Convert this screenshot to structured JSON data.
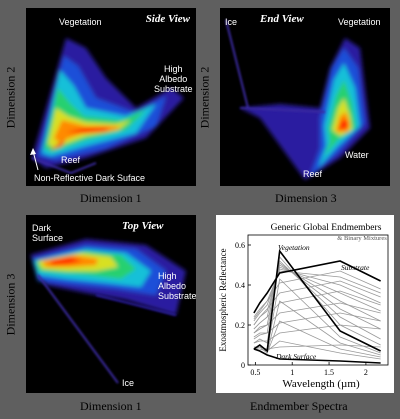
{
  "panels": {
    "side": {
      "view_label": "Side View",
      "ylabel": "Dimension 2",
      "xlabel": "Dimension 1",
      "annotations": {
        "vegetation": "Vegetation",
        "high_albedo": "High\nAlbedo\nSubstrate",
        "reef": "Reef",
        "dark": "Non-Reflective Dark Suface"
      }
    },
    "end": {
      "view_label": "End View",
      "ylabel": "Dimension 2",
      "xlabel": "Dimension 3",
      "annotations": {
        "ice": "Ice",
        "vegetation": "Vegetation",
        "water": "Water",
        "reef": "Reef"
      }
    },
    "top": {
      "view_label": "Top View",
      "ylabel": "Dimension 3",
      "xlabel": "Dimension 1",
      "annotations": {
        "dark": "Dark\nSurface",
        "high_albedo": "High\nAlbedo\nSubstrate",
        "ice": "Ice"
      }
    }
  },
  "spectra_caption": "Endmember Spectra",
  "colors": {
    "background": "#5f5f5f",
    "density_low": "#3a2aa0",
    "density_mid": "#22d06a",
    "density_high": "#ff2a00"
  },
  "chart_data": {
    "type": "line",
    "title": "Generic Global Endmembers",
    "subtitle": "& Binary Mixtures",
    "xlabel": "Wavelength (µm)",
    "ylabel": "Exoatmospheric Reflectance",
    "xlim": [
      0.4,
      2.3
    ],
    "ylim": [
      0,
      0.65
    ],
    "xticks": [
      0.5,
      1,
      1.5,
      2
    ],
    "yticks": [
      0,
      0.2,
      0.4,
      0.6
    ],
    "ytick_labels": [
      "0",
      "0.2",
      "0.4",
      "0.6"
    ],
    "xtick_labels": [
      "0.5",
      "1",
      "1.5",
      "2"
    ],
    "bands": [
      0.48,
      0.56,
      0.66,
      0.83,
      1.65,
      2.2
    ],
    "series": [
      {
        "name": "Vegetation",
        "values": [
          0.08,
          0.1,
          0.07,
          0.57,
          0.17,
          0.07
        ]
      },
      {
        "name": "Substrate",
        "values": [
          0.26,
          0.31,
          0.36,
          0.46,
          0.52,
          0.42
        ]
      },
      {
        "name": "Dark Surface",
        "values": [
          0.08,
          0.07,
          0.05,
          0.03,
          0.02,
          0.01
        ]
      },
      {
        "values": [
          0.24,
          0.28,
          0.32,
          0.47,
          0.44,
          0.36
        ]
      },
      {
        "values": [
          0.22,
          0.26,
          0.3,
          0.48,
          0.4,
          0.31
        ]
      },
      {
        "values": [
          0.2,
          0.24,
          0.27,
          0.49,
          0.36,
          0.27
        ]
      },
      {
        "values": [
          0.18,
          0.21,
          0.24,
          0.5,
          0.32,
          0.22
        ]
      },
      {
        "values": [
          0.16,
          0.19,
          0.2,
          0.51,
          0.28,
          0.18
        ]
      },
      {
        "values": [
          0.14,
          0.16,
          0.16,
          0.52,
          0.24,
          0.13
        ]
      },
      {
        "values": [
          0.11,
          0.13,
          0.11,
          0.54,
          0.2,
          0.1
        ]
      },
      {
        "values": [
          0.23,
          0.27,
          0.32,
          0.41,
          0.47,
          0.38
        ]
      },
      {
        "values": [
          0.2,
          0.24,
          0.28,
          0.36,
          0.42,
          0.34
        ]
      },
      {
        "values": [
          0.18,
          0.21,
          0.24,
          0.31,
          0.37,
          0.3
        ]
      },
      {
        "values": [
          0.16,
          0.18,
          0.2,
          0.26,
          0.31,
          0.26
        ]
      },
      {
        "values": [
          0.13,
          0.15,
          0.16,
          0.21,
          0.26,
          0.22
        ]
      },
      {
        "values": [
          0.11,
          0.12,
          0.12,
          0.16,
          0.2,
          0.18
        ]
      },
      {
        "values": [
          0.09,
          0.09,
          0.08,
          0.09,
          0.1,
          0.09
        ]
      },
      {
        "values": [
          0.08,
          0.08,
          0.07,
          0.12,
          0.06,
          0.03
        ]
      },
      {
        "values": [
          0.08,
          0.09,
          0.06,
          0.22,
          0.08,
          0.04
        ]
      },
      {
        "values": [
          0.08,
          0.09,
          0.06,
          0.32,
          0.11,
          0.05
        ]
      },
      {
        "values": [
          0.08,
          0.1,
          0.07,
          0.43,
          0.14,
          0.06
        ]
      }
    ]
  }
}
